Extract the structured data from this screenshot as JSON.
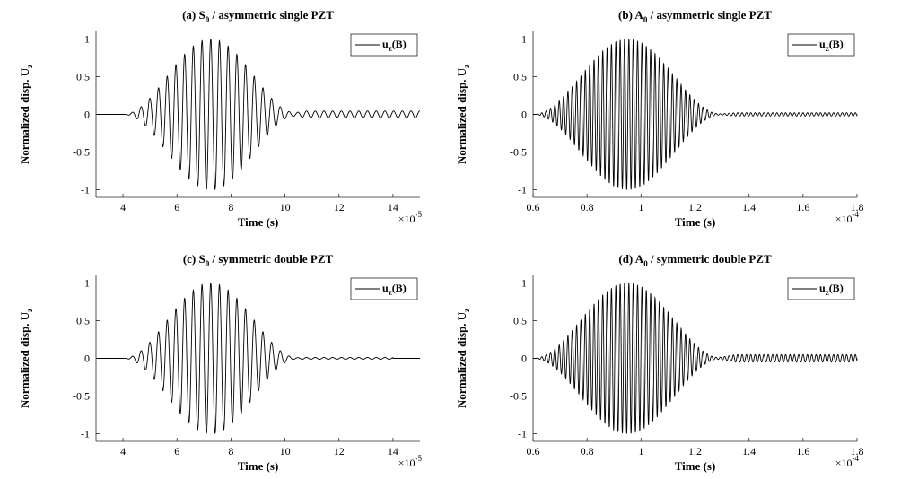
{
  "chart_data": [
    {
      "type": "line",
      "title": {
        "main": "(a) S",
        "sub": "0",
        "rest": " / asymmetric single PZT"
      },
      "xlabel": "Time (s)",
      "ylabel": {
        "main": "Normalized disp. U",
        "sub": "z"
      },
      "x_multiplier": {
        "base": "×10",
        "exp": "-5"
      },
      "xlim": [
        3,
        15
      ],
      "ylim": [
        -1.1,
        1.1
      ],
      "xticks": [
        4,
        6,
        8,
        10,
        12,
        14
      ],
      "yticks": [
        -1,
        -0.5,
        0,
        0.5,
        1
      ],
      "legend": {
        "position": "top-right",
        "entries": [
          {
            "main": "u",
            "sub": "z",
            "rest": "(B)"
          }
        ]
      },
      "series": [
        {
          "name": "u_z(B)",
          "envelope": {
            "start": 4.0,
            "peak": 7.25,
            "end": 10.5,
            "peak_value": 1.0
          },
          "residual": {
            "start": 10.0,
            "end": 15,
            "amplitude": 0.045
          },
          "cycles_per_unit": 3.1
        }
      ]
    },
    {
      "type": "line",
      "title": {
        "main": "(b) A",
        "sub": "0",
        "rest": " / asymmetric single PZT"
      },
      "xlabel": "Time (s)",
      "ylabel": {
        "main": "Normalized disp. U",
        "sub": "z"
      },
      "x_multiplier": {
        "base": "×10",
        "exp": "-4"
      },
      "xlim": [
        0.6,
        1.8
      ],
      "ylim": [
        -1.1,
        1.1
      ],
      "xticks": [
        0.6,
        0.8,
        1,
        1.2,
        1.4,
        1.6,
        1.8
      ],
      "yticks": [
        -1,
        -0.5,
        0,
        0.5,
        1
      ],
      "legend": {
        "position": "top-right",
        "entries": [
          {
            "main": "u",
            "sub": "z",
            "rest": "(B)"
          }
        ]
      },
      "series": [
        {
          "name": "u_z(B)",
          "envelope": {
            "start": 0.6,
            "peak": 0.955,
            "end": 1.3,
            "peak_value": 1.0
          },
          "residual": {
            "start": 1.27,
            "end": 1.8,
            "amplitude": 0.022
          },
          "cycles_per_unit": 62
        }
      ]
    },
    {
      "type": "line",
      "title": {
        "main": "(c) S",
        "sub": "0",
        "rest": " / symmetric double PZT"
      },
      "xlabel": "Time (s)",
      "ylabel": {
        "main": "Normalized disp. U",
        "sub": "z"
      },
      "x_multiplier": {
        "base": "×10",
        "exp": "-5"
      },
      "xlim": [
        3,
        15
      ],
      "ylim": [
        -1.1,
        1.1
      ],
      "xticks": [
        4,
        6,
        8,
        10,
        12,
        14
      ],
      "yticks": [
        -1,
        -0.5,
        0,
        0.5,
        1
      ],
      "legend": {
        "position": "top-right",
        "entries": [
          {
            "main": "u",
            "sub": "z",
            "rest": "(B)"
          }
        ]
      },
      "series": [
        {
          "name": "u_z(B)",
          "envelope": {
            "start": 4.0,
            "peak": 7.25,
            "end": 10.5,
            "peak_value": 1.0
          },
          "residual": {
            "start": 10.0,
            "end": 14.0,
            "amplitude": 0.012
          },
          "cycles_per_unit": 3.1
        }
      ]
    },
    {
      "type": "line",
      "title": {
        "main": "(d) A",
        "sub": "0",
        "rest": " / symmetric double PZT"
      },
      "xlabel": "Time (s)",
      "ylabel": {
        "main": "Normalized disp. U",
        "sub": "z"
      },
      "x_multiplier": {
        "base": "×10",
        "exp": "-4"
      },
      "xlim": [
        0.6,
        1.8
      ],
      "ylim": [
        -1.1,
        1.1
      ],
      "xticks": [
        0.6,
        0.8,
        1,
        1.2,
        1.4,
        1.6,
        1.8
      ],
      "yticks": [
        -1,
        -0.5,
        0,
        0.5,
        1
      ],
      "legend": {
        "position": "top-right",
        "entries": [
          {
            "main": "u",
            "sub": "z",
            "rest": "(B)"
          }
        ]
      },
      "series": [
        {
          "name": "u_z(B)",
          "envelope": {
            "start": 0.6,
            "peak": 0.955,
            "end": 1.3,
            "peak_value": 1.0
          },
          "residual": {
            "start": 1.27,
            "end": 1.8,
            "amplitude": 0.05
          },
          "cycles_per_unit": 62
        }
      ]
    }
  ]
}
